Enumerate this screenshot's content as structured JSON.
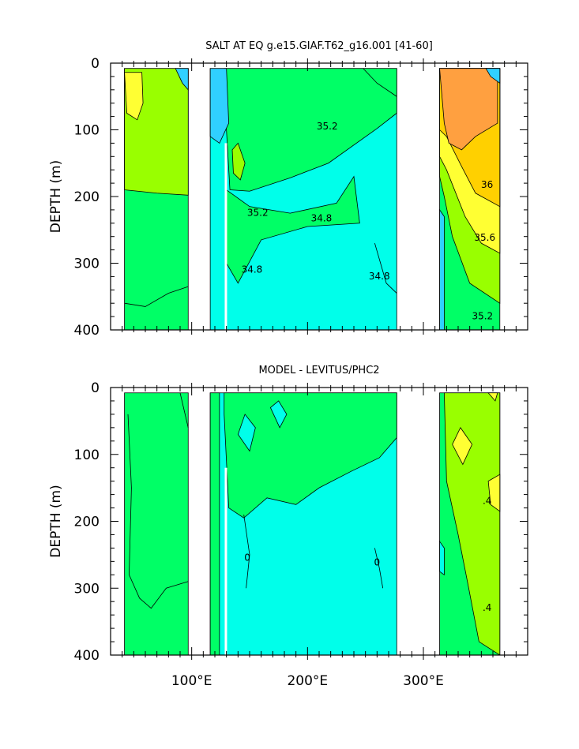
{
  "chart_data": [
    {
      "type": "contour",
      "title": "SALT AT EQ g.e15.GIAF.T62_g16.001 [41-60]",
      "ylabel": "DEPTH (m)",
      "xlim": [
        30,
        390
      ],
      "ylim": [
        0,
        400
      ],
      "y_inverted": true,
      "y_ticks": [
        "0",
        "100",
        "200",
        "300",
        "400"
      ],
      "x_ticks": [],
      "contour_labels": [
        {
          "text": "35.2",
          "lon": 157,
          "depth": 225
        },
        {
          "text": "35.2",
          "lon": 217,
          "depth": 95
        },
        {
          "text": "34.8",
          "lon": 212,
          "depth": 233
        },
        {
          "text": "34.8",
          "lon": 152,
          "depth": 310
        },
        {
          "text": "34.8",
          "lon": 262,
          "depth": 320
        },
        {
          "text": "36",
          "lon": 355,
          "depth": 183
        },
        {
          "text": "35.6",
          "lon": 353,
          "depth": 262
        },
        {
          "text": "35.2",
          "lon": 351,
          "depth": 380
        }
      ],
      "fill_colors": [
        "#30d0ff",
        "#00ffea",
        "#00ff66",
        "#99ff00",
        "#ffff33",
        "#ffd000",
        "#ffa040"
      ]
    },
    {
      "type": "contour",
      "title": "MODEL - LEVITUS/PHC2",
      "ylabel": "DEPTH (m)",
      "xlim": [
        30,
        390
      ],
      "ylim": [
        0,
        400
      ],
      "y_inverted": true,
      "y_ticks": [
        "0",
        "100",
        "200",
        "300",
        "400"
      ],
      "x_ticks": [
        "100°E",
        "200°E",
        "300°E"
      ],
      "contour_labels": [
        {
          "text": "0",
          "lon": 148,
          "depth": 255
        },
        {
          "text": "0",
          "lon": 260,
          "depth": 262
        },
        {
          "text": ".4",
          "lon": 355,
          "depth": 170
        },
        {
          "text": ".4",
          "lon": 355,
          "depth": 330
        }
      ],
      "fill_colors": [
        "#00ffea",
        "#00ff66",
        "#99ff00",
        "#ffff33"
      ]
    }
  ]
}
